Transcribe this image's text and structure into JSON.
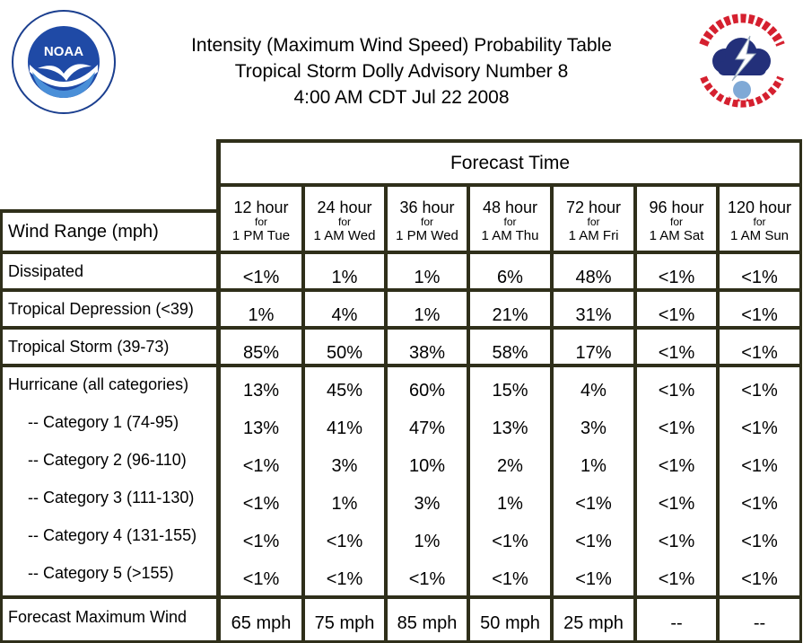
{
  "title_lines": [
    "Intensity (Maximum Wind Speed) Probability Table",
    "Tropical Storm Dolly Advisory Number 8",
    "4:00 AM CDT Jul 22 2008"
  ],
  "logos": {
    "left": "noaa-logo",
    "right": "national-weather-service-logo"
  },
  "forecast_time_label": "Forecast Time",
  "wind_range_label": "Wind Range (mph)",
  "columns": [
    {
      "hours": "12 hour",
      "for": "for",
      "time": "1 PM Tue"
    },
    {
      "hours": "24 hour",
      "for": "for",
      "time": "1 AM Wed"
    },
    {
      "hours": "36 hour",
      "for": "for",
      "time": "1 PM Wed"
    },
    {
      "hours": "48 hour",
      "for": "for",
      "time": "1 AM Thu"
    },
    {
      "hours": "72 hour",
      "for": "for",
      "time": "1 AM Fri"
    },
    {
      "hours": "96 hour",
      "for": "for",
      "time": "1 AM Sat"
    },
    {
      "hours": "120 hour",
      "for": "for",
      "time": "1 AM Sun"
    }
  ],
  "rows": [
    {
      "label": "Dissipated",
      "values": [
        "<1%",
        "1%",
        "1%",
        "6%",
        "48%",
        "<1%",
        "<1%"
      ]
    },
    {
      "label": "Tropical Depression (<39)",
      "values": [
        "1%",
        "4%",
        "1%",
        "21%",
        "31%",
        "<1%",
        "<1%"
      ]
    },
    {
      "label": "Tropical Storm (39-73)",
      "values": [
        "85%",
        "50%",
        "38%",
        "58%",
        "17%",
        "<1%",
        "<1%"
      ]
    },
    {
      "label": "Hurricane (all categories)",
      "values": [
        "13%",
        "45%",
        "60%",
        "15%",
        "4%",
        "<1%",
        "<1%"
      ]
    },
    {
      "label": "-- Category 1 (74-95)",
      "values": [
        "13%",
        "41%",
        "47%",
        "13%",
        "3%",
        "<1%",
        "<1%"
      ]
    },
    {
      "label": "-- Category 2 (96-110)",
      "values": [
        "<1%",
        "3%",
        "10%",
        "2%",
        "1%",
        "<1%",
        "<1%"
      ]
    },
    {
      "label": "-- Category 3 (111-130)",
      "values": [
        "<1%",
        "1%",
        "3%",
        "1%",
        "<1%",
        "<1%",
        "<1%"
      ]
    },
    {
      "label": "-- Category 4 (131-155)",
      "values": [
        "<1%",
        "<1%",
        "1%",
        "<1%",
        "<1%",
        "<1%",
        "<1%"
      ]
    },
    {
      "label": "-- Category 5 (>155)",
      "values": [
        "<1%",
        "<1%",
        "<1%",
        "<1%",
        "<1%",
        "<1%",
        "<1%"
      ]
    }
  ],
  "max_wind_row": {
    "label": "Forecast Maximum Wind",
    "values": [
      "65 mph",
      "75 mph",
      "85 mph",
      "50 mph",
      "25 mph",
      "--",
      "--"
    ]
  },
  "colors": {
    "grid": "#2f2f1a",
    "background": "#ffffff"
  }
}
